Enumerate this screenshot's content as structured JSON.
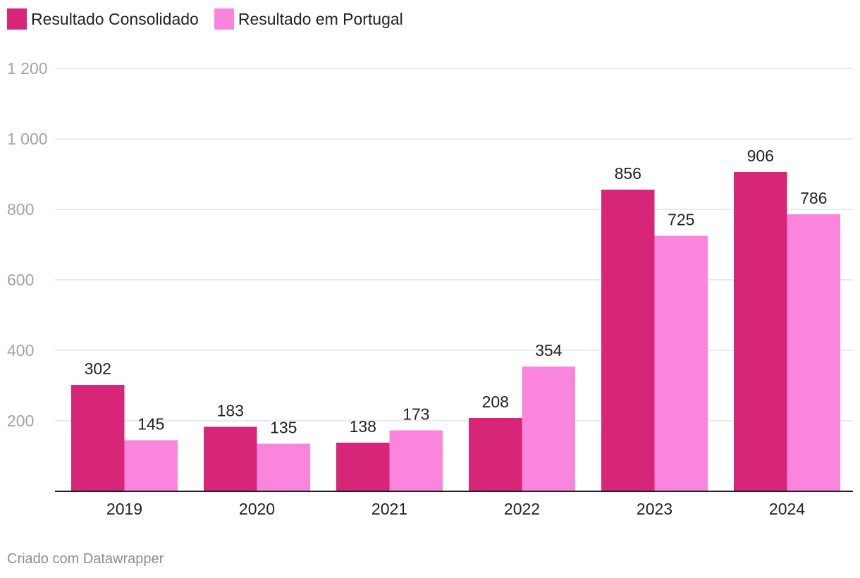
{
  "chart_data": {
    "type": "bar",
    "categories": [
      "2019",
      "2020",
      "2021",
      "2022",
      "2023",
      "2024"
    ],
    "series": [
      {
        "name": "Resultado Consolidado",
        "color": "#d72678",
        "values": [
          302,
          183,
          138,
          208,
          856,
          906
        ]
      },
      {
        "name": "Resultado em Portugal",
        "color": "#f986dc",
        "values": [
          145,
          135,
          173,
          354,
          725,
          786
        ]
      }
    ],
    "yticks": [
      200,
      400,
      600,
      800,
      1000,
      1200
    ],
    "ytick_labels": [
      "200",
      "400",
      "600",
      "800",
      "1 000",
      "1 200"
    ],
    "ylim": [
      0,
      1200
    ],
    "grid": true,
    "legend_position": "top-left",
    "title": "",
    "xlabel": "",
    "ylabel": ""
  },
  "footer": {
    "credit": "Criado com Datawrapper"
  }
}
